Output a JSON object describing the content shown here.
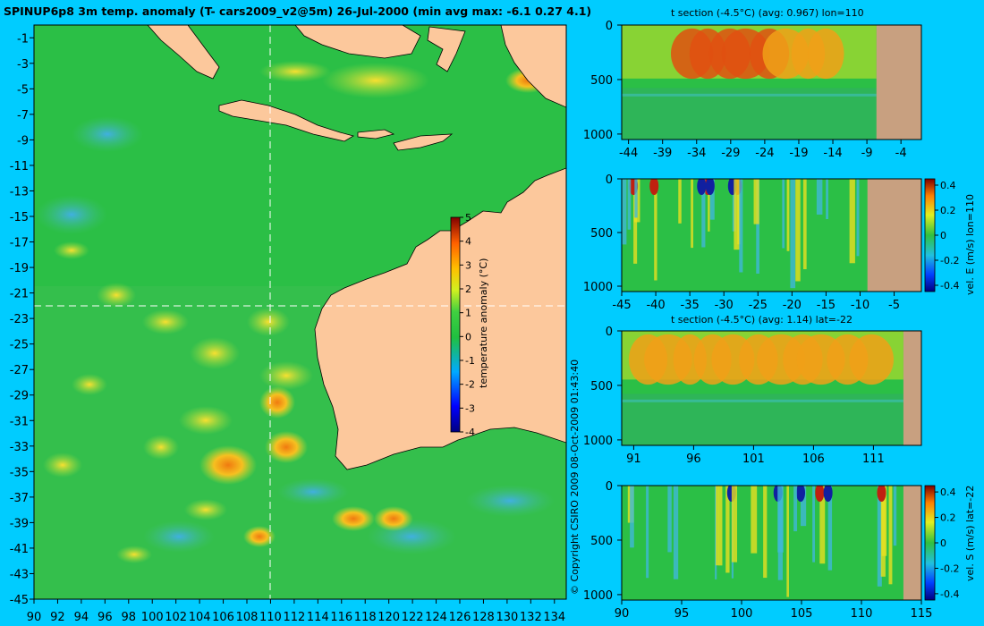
{
  "chart_data": [
    {
      "type": "heatmap",
      "title": "SPINUP6p8 3m temp. anomaly (T- cars2009_v2@5m) 26-Jul-2000 (min avg max: -6.1 0.27 4.1)",
      "x_ticks": [
        "90",
        "92",
        "94",
        "96",
        "98",
        "100",
        "102",
        "104",
        "106",
        "108",
        "110",
        "112",
        "114",
        "116",
        "118",
        "120",
        "122",
        "124",
        "126",
        "128",
        "130",
        "132",
        "134"
      ],
      "y_ticks": [
        "-1",
        "-3",
        "-5",
        "-7",
        "-9",
        "-11",
        "-13",
        "-15",
        "-17",
        "-19",
        "-21",
        "-23",
        "-25",
        "-27",
        "-29",
        "-31",
        "-33",
        "-35",
        "-37",
        "-39",
        "-41",
        "-43",
        "-45"
      ],
      "xlim": [
        90,
        135
      ],
      "ylim": [
        -45,
        0
      ],
      "crosshair": {
        "lon": 110,
        "lat": -22
      },
      "colorbar": {
        "label": "temperature anomaly (°C)",
        "ticks": [
          "5",
          "4",
          "3",
          "2",
          "1",
          "0",
          "-1",
          "-2",
          "-3",
          "-4"
        ],
        "range": [
          -4,
          5
        ]
      },
      "min": -6.1,
      "avg": 0.27,
      "max": 4.1
    },
    {
      "type": "heatmap",
      "title": "t section (-4.5°C) (avg: 0.967) lon=110",
      "x_ticks": [
        "-44",
        "-39",
        "-34",
        "-29",
        "-24",
        "-19",
        "-14",
        "-9",
        "-4"
      ],
      "y_ticks": [
        "0",
        "500",
        "1000"
      ],
      "xlim": [
        -45,
        -1
      ],
      "ylim": [
        1050,
        0
      ]
    },
    {
      "type": "heatmap",
      "title": "",
      "ylabel": "vel. E (m/s) lon=110",
      "x_ticks": [
        "-45",
        "-40",
        "-35",
        "-30",
        "-25",
        "-20",
        "-15",
        "-10",
        "-5"
      ],
      "y_ticks": [
        "0",
        "500",
        "1000"
      ],
      "xlim": [
        -45,
        -1
      ],
      "ylim": [
        1050,
        0
      ],
      "colorbar": {
        "ticks": [
          "0.4",
          "0.2",
          "0",
          "-0.2",
          "-0.4"
        ],
        "range": [
          -0.45,
          0.45
        ]
      }
    },
    {
      "type": "heatmap",
      "title": "t section (-4.5°C) (avg: 1.14) lat=-22",
      "x_ticks": [
        "91",
        "96",
        "101",
        "106",
        "111"
      ],
      "y_ticks": [
        "0",
        "500",
        "1000"
      ],
      "xlim": [
        90,
        115
      ],
      "ylim": [
        1050,
        0
      ]
    },
    {
      "type": "heatmap",
      "title": "",
      "ylabel": "vel. S (m/s) lat=-22",
      "x_ticks": [
        "90",
        "95",
        "100",
        "105",
        "110",
        "115"
      ],
      "y_ticks": [
        "0",
        "500",
        "1000"
      ],
      "xlim": [
        90,
        115
      ],
      "ylim": [
        1050,
        0
      ],
      "colorbar": {
        "ticks": [
          "0.4",
          "0.2",
          "0",
          "-0.2",
          "-0.4"
        ],
        "range": [
          -0.45,
          0.45
        ]
      }
    }
  ],
  "copyright": "© Copyright CSIRO 2009   08-Oct-2009 01:43:40",
  "colors": {
    "background": "#00ccff",
    "ocean_base": "#2bbf46",
    "land": "#fcc89c",
    "section_land": "#c8a080",
    "warm": "#f0a010",
    "hot": "#c03010",
    "cool": "#3aaad8"
  }
}
